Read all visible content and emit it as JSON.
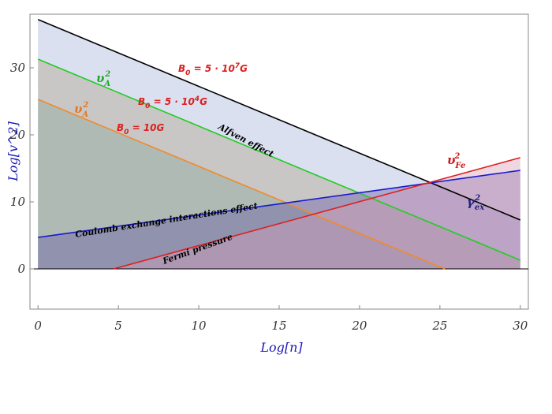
{
  "chart_data": {
    "type": "line",
    "xlabel": "Log[n]",
    "ylabel": "Log[v^2]",
    "xlim": [
      -0.5,
      30.5
    ],
    "ylim": [
      -6,
      38
    ],
    "xticks": [
      "0",
      "5",
      "10",
      "15",
      "20",
      "25",
      "30"
    ],
    "yticks": [
      "0",
      "10",
      "20",
      "30"
    ],
    "grid": false,
    "series": [
      {
        "name": "v_A^2 (B_0 = 5·10^7 G)",
        "color": "#000000",
        "fill": "#aab4dc",
        "x": [
          0,
          30
        ],
        "y": [
          37.2,
          7.3
        ]
      },
      {
        "name": "v_A^2 (B_0 = 5·10^4 G)",
        "color": "#22cc22",
        "fill": "#b0a38c",
        "x": [
          0,
          30
        ],
        "y": [
          31.3,
          1.3
        ]
      },
      {
        "name": "v_A^2 (B_0 = 10 G)",
        "color": "#f08a2a",
        "fill": "#8da99a",
        "x": [
          0,
          25.3
        ],
        "y": [
          25.3,
          0
        ]
      },
      {
        "name": "γ_ex^2",
        "color": "#1a1acc",
        "fill": "#6a5aa8",
        "x": [
          0,
          30
        ],
        "y": [
          4.7,
          14.7
        ]
      },
      {
        "name": "v_Fe^2",
        "color": "#dd2020",
        "fill": "#d6a0b8",
        "x": [
          4.7,
          30
        ],
        "y": [
          0,
          16.6
        ]
      }
    ],
    "annotations": {
      "b1": "B_0 = 5 · 10^7 G",
      "b2": "B_0 = 5 · 10^4 G",
      "b3": "B_0 = 10 G",
      "alfven": "Alfven effect",
      "coulomb": "Coulomb  exchange interactions effect",
      "fermi": "Fermi pressure",
      "vA_green": "v_A^2",
      "vA_orange": "v_A^2",
      "vFe": "v_Fe^2",
      "gex": "γ_ex^2"
    }
  }
}
